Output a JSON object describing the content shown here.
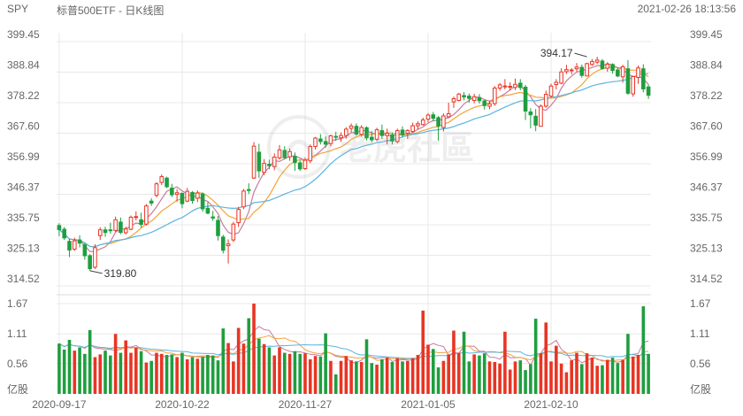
{
  "header": {
    "symbol": "SPY",
    "name": "标普500ETF - 日K线图",
    "datetime": "2021-02-26 18:13:56"
  },
  "watermark": "老虎社區",
  "colors": {
    "up": "#e83524",
    "down": "#1f9e3f",
    "ma5": "#c97b9d",
    "ma10": "#f3a33a",
    "ma20": "#5ab4df",
    "grid": "#e8e8e8"
  },
  "chart_data": {
    "type": "candlestick",
    "price_axis": {
      "ticks": [
        "399.45",
        "388.84",
        "378.22",
        "367.60",
        "356.99",
        "346.37",
        "335.75",
        "325.13",
        "314.52"
      ],
      "ylim": [
        314.52,
        399.45
      ]
    },
    "volume_axis": {
      "ticks": [
        "1.67",
        "1.11",
        "0.56"
      ],
      "unit": "亿股",
      "ylim": [
        0,
        1.67
      ]
    },
    "date_ticks": [
      {
        "label": "2020-09-17",
        "index": 0
      },
      {
        "label": "2020-10-22",
        "index": 24
      },
      {
        "label": "2020-11-27",
        "index": 48
      },
      {
        "label": "2021-01-05",
        "index": 72
      },
      {
        "label": "2021-02-10",
        "index": 96
      }
    ],
    "annotations": [
      {
        "label": "319.80",
        "index": 6,
        "value": 319.8
      },
      {
        "label": "394.17",
        "index": 103,
        "value": 394.17
      }
    ],
    "moving_averages": [
      "MA5",
      "MA10",
      "MA20"
    ],
    "candles": [
      [
        335.5,
        334.1,
        336.3,
        331.8
      ],
      [
        334.2,
        331.2,
        335.0,
        330.5
      ],
      [
        330.0,
        327.0,
        330.9,
        324.5
      ],
      [
        327.3,
        330.2,
        331.3,
        326.7
      ],
      [
        330.5,
        329.4,
        332.1,
        327.9
      ],
      [
        328.8,
        325.0,
        329.4,
        323.6
      ],
      [
        325.0,
        320.5,
        325.6,
        319.8
      ],
      [
        321.0,
        327.8,
        329.0,
        320.4
      ],
      [
        332.0,
        334.0,
        334.9,
        330.5
      ],
      [
        334.0,
        333.1,
        335.1,
        331.6
      ],
      [
        334.0,
        333.8,
        336.5,
        332.7
      ],
      [
        333.8,
        337.5,
        338.6,
        333.2
      ],
      [
        336.7,
        333.1,
        338.3,
        332.5
      ],
      [
        333.0,
        334.3,
        335.1,
        332.4
      ],
      [
        334.2,
        338.4,
        339.0,
        333.9
      ],
      [
        338.5,
        338.6,
        340.4,
        337.3
      ],
      [
        337.5,
        335.9,
        340.0,
        334.8
      ],
      [
        336.0,
        342.3,
        343.0,
        335.5
      ],
      [
        344.0,
        343.3,
        345.0,
        342.3
      ],
      [
        346.0,
        350.0,
        350.6,
        345.3
      ],
      [
        350.5,
        352.5,
        353.3,
        349.6
      ],
      [
        352.0,
        349.0,
        352.5,
        348.5
      ],
      [
        348.5,
        346.2,
        350.0,
        345.4
      ],
      [
        346.3,
        346.9,
        348.2,
        343.8
      ],
      [
        346.7,
        343.1,
        347.0,
        341.5
      ],
      [
        344.0,
        347.4,
        348.6,
        343.6
      ],
      [
        347.0,
        344.2,
        347.5,
        343.1
      ],
      [
        345.0,
        346.8,
        347.7,
        343.6
      ],
      [
        346.5,
        341.3,
        347.0,
        340.3
      ],
      [
        341.5,
        339.8,
        343.6,
        339.4
      ],
      [
        338.5,
        338.1,
        340.6,
        337.1
      ],
      [
        337.3,
        332.0,
        338.8,
        330.3
      ],
      [
        331.5,
        326.9,
        332.3,
        325.8
      ],
      [
        328.5,
        329.1,
        330.7,
        322.3
      ],
      [
        330.5,
        336.0,
        336.8,
        329.8
      ],
      [
        336.5,
        341.1,
        342.0,
        335.0
      ],
      [
        342.0,
        347.5,
        348.2,
        341.2
      ],
      [
        348.0,
        347.7,
        350.2,
        346.5
      ],
      [
        352.0,
        363.1,
        364.5,
        351.7
      ],
      [
        361.0,
        354.5,
        363.9,
        352.1
      ],
      [
        354.0,
        357.1,
        358.6,
        353.0
      ],
      [
        356.8,
        356.3,
        358.4,
        355.1
      ],
      [
        356.0,
        359.3,
        360.6,
        354.7
      ],
      [
        359.0,
        361.8,
        363.5,
        358.4
      ],
      [
        361.6,
        359.1,
        363.1,
        358.6
      ],
      [
        359.4,
        361.2,
        362.3,
        358.0
      ],
      [
        359.5,
        357.4,
        360.9,
        354.5
      ],
      [
        357.3,
        355.2,
        358.3,
        354.5
      ],
      [
        355.3,
        358.2,
        359.2,
        354.8
      ],
      [
        358.0,
        363.0,
        363.7,
        357.2
      ],
      [
        363.0,
        365.9,
        366.3,
        361.9
      ],
      [
        365.6,
        364.7,
        367.3,
        363.7
      ],
      [
        364.7,
        363.8,
        366.5,
        362.5
      ],
      [
        364.0,
        366.7,
        367.1,
        363.0
      ],
      [
        366.5,
        366.2,
        368.1,
        364.9
      ],
      [
        366.0,
        366.8,
        367.9,
        364.6
      ],
      [
        366.8,
        369.0,
        369.7,
        365.7
      ],
      [
        369.3,
        370.1,
        371.0,
        367.9
      ],
      [
        370.0,
        367.3,
        371.0,
        366.8
      ],
      [
        367.2,
        369.6,
        370.4,
        366.4
      ],
      [
        369.5,
        366.0,
        370.0,
        365.1
      ],
      [
        366.2,
        365.3,
        368.4,
        364.4
      ],
      [
        365.5,
        368.8,
        369.5,
        364.8
      ],
      [
        368.5,
        366.8,
        370.6,
        365.6
      ],
      [
        366.8,
        367.6,
        369.2,
        363.7
      ],
      [
        367.0,
        364.9,
        367.9,
        363.7
      ],
      [
        364.7,
        368.5,
        369.2,
        364.1
      ],
      [
        368.7,
        367.0,
        370.0,
        366.2
      ],
      [
        367.6,
        368.5,
        369.0,
        365.6
      ],
      [
        368.2,
        370.2,
        371.3,
        367.7
      ],
      [
        370.2,
        370.9,
        371.8,
        368.9
      ],
      [
        370.6,
        372.2,
        373.0,
        370.2
      ],
      [
        372.5,
        373.9,
        374.6,
        371.4
      ],
      [
        374.0,
        372.8,
        375.0,
        371.8
      ],
      [
        373.0,
        370.1,
        373.6,
        365.0
      ],
      [
        369.6,
        373.6,
        374.5,
        368.2
      ],
      [
        373.3,
        374.4,
        378.2,
        373.0
      ],
      [
        378.5,
        379.6,
        380.3,
        376.4
      ],
      [
        379.0,
        381.2,
        381.6,
        378.7
      ],
      [
        380.7,
        380.2,
        381.9,
        379.0
      ],
      [
        380.5,
        379.7,
        381.4,
        378.2
      ],
      [
        379.0,
        380.3,
        381.3,
        378.0
      ],
      [
        380.0,
        378.9,
        381.2,
        377.9
      ],
      [
        378.8,
        377.2,
        379.2,
        375.8
      ],
      [
        377.0,
        377.8,
        378.8,
        375.9
      ],
      [
        377.9,
        383.3,
        384.0,
        377.1
      ],
      [
        383.3,
        384.4,
        385.1,
        382.4
      ],
      [
        384.0,
        384.0,
        386.4,
        382.8
      ],
      [
        383.7,
        383.9,
        385.3,
        382.5
      ],
      [
        383.5,
        384.6,
        386.6,
        382.6
      ],
      [
        385.0,
        383.5,
        386.4,
        382.6
      ],
      [
        383.6,
        375.3,
        384.4,
        372.2
      ],
      [
        375.0,
        374.0,
        376.3,
        369.3
      ],
      [
        373.5,
        370.4,
        376.0,
        368.3
      ],
      [
        370.0,
        377.0,
        377.6,
        369.9
      ],
      [
        377.0,
        381.1,
        382.4,
        376.4
      ],
      [
        380.5,
        384.0,
        384.8,
        380.0
      ],
      [
        384.5,
        385.3,
        386.4,
        382.8
      ],
      [
        385.0,
        388.9,
        390.2,
        384.6
      ],
      [
        389.0,
        389.7,
        391.4,
        388.2
      ],
      [
        389.5,
        389.6,
        390.2,
        388.1
      ],
      [
        390.0,
        390.6,
        392.0,
        389.0
      ],
      [
        390.5,
        387.7,
        391.5,
        386.9
      ],
      [
        387.5,
        391.8,
        392.1,
        387.4
      ],
      [
        391.5,
        392.5,
        393.4,
        391.0
      ],
      [
        392.3,
        393.0,
        394.17,
        391.6
      ],
      [
        392.7,
        390.1,
        393.4,
        389.8
      ],
      [
        390.2,
        391.6,
        392.3,
        389.0
      ],
      [
        391.5,
        389.4,
        391.9,
        388.3
      ],
      [
        389.6,
        387.5,
        390.6,
        387.1
      ],
      [
        387.2,
        390.7,
        391.4,
        385.2
      ],
      [
        390.0,
        381.5,
        393.0,
        381.0
      ],
      [
        381.3,
        387.3,
        387.6,
        380.3
      ],
      [
        387.0,
        390.3,
        391.1,
        384.8
      ],
      [
        390.0,
        383.0,
        391.6,
        381.8
      ],
      [
        383.7,
        380.8,
        384.6,
        379.5
      ]
    ],
    "volume": [
      0.93,
      0.82,
      1.0,
      0.8,
      0.86,
      0.74,
      1.18,
      0.68,
      0.73,
      0.8,
      0.71,
      1.11,
      0.76,
      0.99,
      0.76,
      0.85,
      0.79,
      0.58,
      0.61,
      0.76,
      0.74,
      0.72,
      0.73,
      0.68,
      0.76,
      0.64,
      0.68,
      0.65,
      0.68,
      0.72,
      0.71,
      0.62,
      1.21,
      0.94,
      0.6,
      1.22,
      0.93,
      1.4,
      1.67,
      1.02,
      0.92,
      0.86,
      0.71,
      0.86,
      0.76,
      0.74,
      0.79,
      0.74,
      0.75,
      0.64,
      0.7,
      0.69,
      1.12,
      0.61,
      0.36,
      0.61,
      0.7,
      0.62,
      0.6,
      0.59,
      1.01,
      0.57,
      0.54,
      0.64,
      0.67,
      0.59,
      0.66,
      0.6,
      0.61,
      0.66,
      0.72,
      1.54,
      0.91,
      0.83,
      0.49,
      0.61,
      0.73,
      1.17,
      0.76,
      1.15,
      0.6,
      0.73,
      0.71,
      0.75,
      0.6,
      0.59,
      0.56,
      1.15,
      0.45,
      0.6,
      0.62,
      0.44,
      0.55,
      1.39,
      0.75,
      1.32,
      0.6,
      0.89,
      0.56,
      0.4,
      0.62,
      0.76,
      0.55,
      0.75,
      0.67,
      0.52,
      0.53,
      0.63,
      0.67,
      0.57,
      0.63,
      1.11,
      0.69,
      0.72,
      1.62,
      0.74
    ]
  }
}
